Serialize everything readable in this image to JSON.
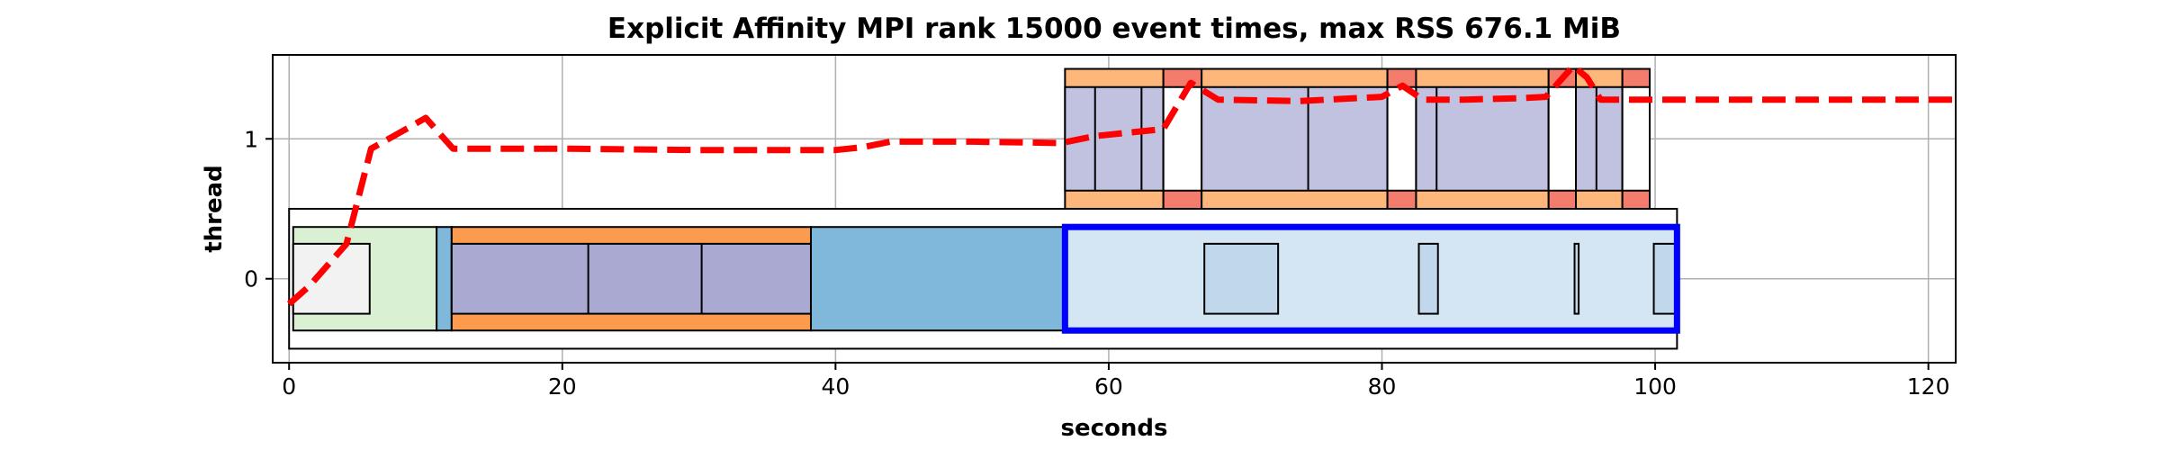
{
  "chart_data": {
    "type": "timeline",
    "title": "Explicit Affinity MPI rank 15000 event times, max RSS 676.1 MiB",
    "xlabel": "seconds",
    "ylabel": "thread",
    "xlim": [
      -1.2,
      122
    ],
    "ylim": [
      -0.6,
      1.6
    ],
    "xticks": [
      0,
      20,
      40,
      60,
      80,
      100,
      120
    ],
    "yticks": [
      0,
      1
    ],
    "grid": true,
    "colors": {
      "outline": "#000000",
      "grid": "#b0b0b0",
      "rss": "#ff0000",
      "highlight": "#0000ff",
      "green": "#d9f0d3",
      "gray": "#f2f2f2",
      "blue": "#7fb8da",
      "lightblue": "#d4e5f3",
      "midblue": "#c0d7ec",
      "orange": "#fc9a4e",
      "lightorange": "#fdb77a",
      "purple": "#a9a9d2",
      "lightpurple": "#c1c1e0",
      "red": "#f47c6c",
      "white": "#ffffff"
    },
    "blocks": [
      {
        "x0": 0,
        "x1": 101.6,
        "y0": -0.5,
        "y1": 0.5,
        "fill": "white",
        "lw": 2
      },
      {
        "x0": 0.3,
        "x1": 10.8,
        "y0": -0.37,
        "y1": 0.37,
        "fill": "green",
        "lw": 2
      },
      {
        "x0": 0.3,
        "x1": 5.9,
        "y0": -0.25,
        "y1": 0.25,
        "fill": "gray",
        "lw": 2
      },
      {
        "x0": 10.8,
        "x1": 11.9,
        "y0": -0.37,
        "y1": 0.37,
        "fill": "blue",
        "lw": 2
      },
      {
        "x0": 11.9,
        "x1": 38.2,
        "y0": -0.37,
        "y1": 0.37,
        "fill": "orange",
        "lw": 2
      },
      {
        "x0": 11.9,
        "x1": 38.2,
        "y0": -0.25,
        "y1": 0.25,
        "fill": "purple",
        "lw": 2
      },
      {
        "x0": 21.9,
        "x1": 21.9,
        "y0": -0.25,
        "y1": 0.25,
        "fill": "purple",
        "lw": 2
      },
      {
        "x0": 30.2,
        "x1": 30.2,
        "y0": -0.25,
        "y1": 0.25,
        "fill": "purple",
        "lw": 2
      },
      {
        "x0": 38.2,
        "x1": 56.8,
        "y0": -0.37,
        "y1": 0.37,
        "fill": "blue",
        "lw": 2
      },
      {
        "x0": 56.8,
        "x1": 101.6,
        "y0": -0.37,
        "y1": 0.37,
        "fill": "lightblue",
        "lw": 2
      },
      {
        "x0": 67.0,
        "x1": 72.4,
        "y0": -0.25,
        "y1": 0.25,
        "fill": "midblue",
        "lw": 2
      },
      {
        "x0": 82.7,
        "x1": 84.1,
        "y0": -0.25,
        "y1": 0.25,
        "fill": "midblue",
        "lw": 2
      },
      {
        "x0": 94.1,
        "x1": 94.4,
        "y0": -0.25,
        "y1": 0.25,
        "fill": "midblue",
        "lw": 2
      },
      {
        "x0": 99.9,
        "x1": 101.6,
        "y0": -0.25,
        "y1": 0.25,
        "fill": "midblue",
        "lw": 2
      },
      {
        "x0": 56.8,
        "x1": 64.0,
        "y0": 0.5,
        "y1": 1.5,
        "fill": "lightorange",
        "lw": 2
      },
      {
        "x0": 56.8,
        "x1": 64.0,
        "y0": 0.63,
        "y1": 1.37,
        "fill": "lightpurple",
        "lw": 2
      },
      {
        "x0": 59.0,
        "x1": 59.0,
        "y0": 0.63,
        "y1": 1.37,
        "fill": "lightpurple",
        "lw": 2
      },
      {
        "x0": 62.4,
        "x1": 62.4,
        "y0": 0.63,
        "y1": 1.37,
        "fill": "lightpurple",
        "lw": 2
      },
      {
        "x0": 64.0,
        "x1": 66.8,
        "y0": 0.5,
        "y1": 1.5,
        "fill": "red",
        "lw": 2
      },
      {
        "x0": 64.0,
        "x1": 66.8,
        "y0": 0.63,
        "y1": 1.37,
        "fill": "white",
        "lw": 2
      },
      {
        "x0": 66.8,
        "x1": 80.4,
        "y0": 0.5,
        "y1": 1.5,
        "fill": "lightorange",
        "lw": 2
      },
      {
        "x0": 66.8,
        "x1": 80.4,
        "y0": 0.63,
        "y1": 1.37,
        "fill": "lightpurple",
        "lw": 2
      },
      {
        "x0": 74.6,
        "x1": 74.6,
        "y0": 0.63,
        "y1": 1.37,
        "fill": "lightpurple",
        "lw": 2
      },
      {
        "x0": 80.4,
        "x1": 82.5,
        "y0": 0.5,
        "y1": 1.5,
        "fill": "red",
        "lw": 2
      },
      {
        "x0": 80.4,
        "x1": 82.5,
        "y0": 0.63,
        "y1": 1.37,
        "fill": "white",
        "lw": 2
      },
      {
        "x0": 82.5,
        "x1": 92.2,
        "y0": 0.5,
        "y1": 1.5,
        "fill": "lightorange",
        "lw": 2
      },
      {
        "x0": 82.5,
        "x1": 92.2,
        "y0": 0.63,
        "y1": 1.37,
        "fill": "lightpurple",
        "lw": 2
      },
      {
        "x0": 84.0,
        "x1": 84.0,
        "y0": 0.63,
        "y1": 1.37,
        "fill": "lightpurple",
        "lw": 2
      },
      {
        "x0": 92.2,
        "x1": 94.2,
        "y0": 0.5,
        "y1": 1.5,
        "fill": "red",
        "lw": 2
      },
      {
        "x0": 92.2,
        "x1": 94.2,
        "y0": 0.63,
        "y1": 1.37,
        "fill": "white",
        "lw": 2
      },
      {
        "x0": 94.2,
        "x1": 97.6,
        "y0": 0.5,
        "y1": 1.5,
        "fill": "lightorange",
        "lw": 2
      },
      {
        "x0": 94.2,
        "x1": 97.6,
        "y0": 0.63,
        "y1": 1.37,
        "fill": "lightpurple",
        "lw": 2
      },
      {
        "x0": 95.7,
        "x1": 95.7,
        "y0": 0.63,
        "y1": 1.37,
        "fill": "lightpurple",
        "lw": 2
      },
      {
        "x0": 97.6,
        "x1": 99.6,
        "y0": 0.5,
        "y1": 1.5,
        "fill": "red",
        "lw": 2
      },
      {
        "x0": 97.6,
        "x1": 99.6,
        "y0": 0.63,
        "y1": 1.37,
        "fill": "white",
        "lw": 2
      },
      {
        "x0": 56.8,
        "x1": 101.6,
        "y0": -0.37,
        "y1": 0.37,
        "fill": "none",
        "stroke": "highlight",
        "lw": 7
      }
    ],
    "rss_series": {
      "x": [
        0,
        1.5,
        4.2,
        6.0,
        8.2,
        10.0,
        12.0,
        20,
        30,
        40,
        42,
        44,
        50,
        56.5,
        59,
        62,
        64,
        66,
        68,
        74,
        80,
        81.5,
        83,
        86,
        90,
        92,
        94,
        95,
        96,
        98,
        100,
        110,
        122
      ],
      "y": [
        -0.18,
        -0.05,
        0.25,
        0.93,
        1.05,
        1.15,
        0.93,
        0.93,
        0.92,
        0.92,
        0.94,
        0.98,
        0.98,
        0.97,
        1.02,
        1.05,
        1.07,
        1.4,
        1.28,
        1.27,
        1.3,
        1.38,
        1.28,
        1.28,
        1.29,
        1.3,
        1.52,
        1.44,
        1.28,
        1.28,
        1.28,
        1.28,
        1.28
      ]
    }
  }
}
